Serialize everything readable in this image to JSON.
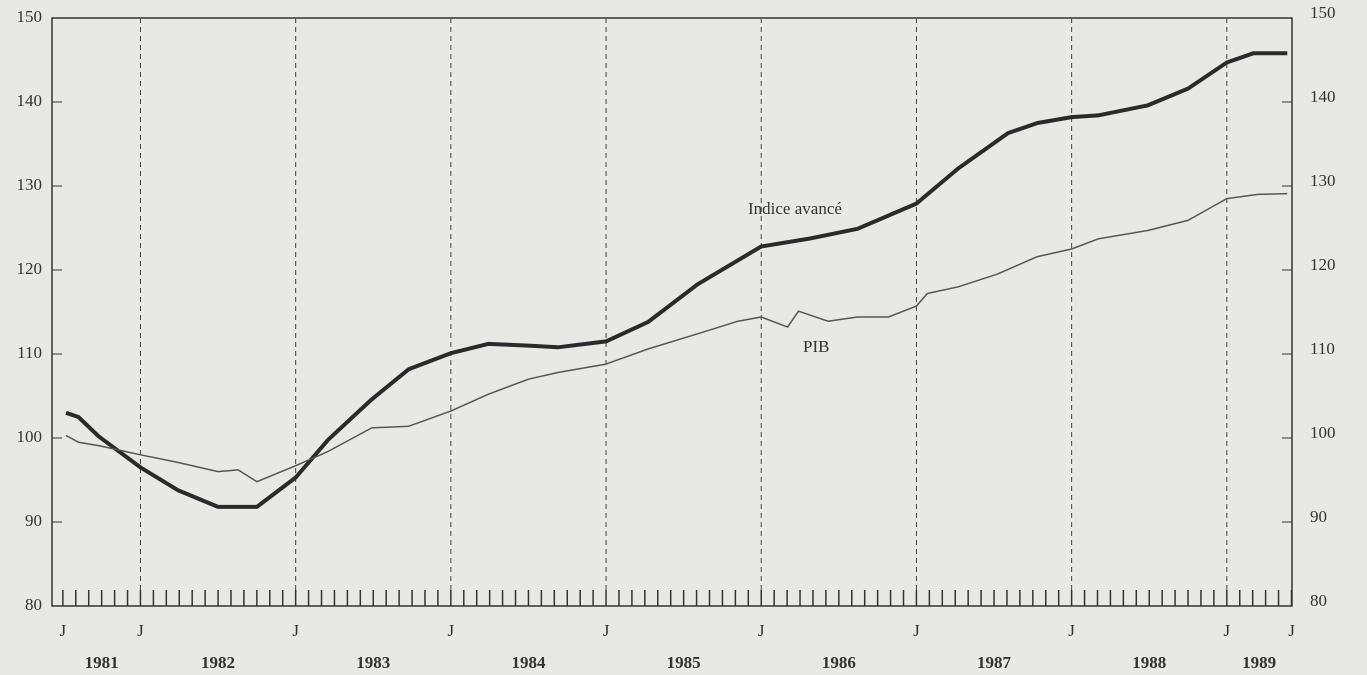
{
  "chart_data": {
    "type": "line",
    "series": [
      {
        "name": "Indice avancé",
        "color": "#2a2a2a",
        "width": 4,
        "x": [
          1981.52,
          1981.6,
          1981.73,
          1982.0,
          1982.24,
          1982.5,
          1982.75,
          1983.0,
          1983.21,
          1983.49,
          1983.73,
          1984.0,
          1984.24,
          1984.5,
          1984.69,
          1985.0,
          1985.27,
          1985.59,
          1986.0,
          1986.3,
          1986.62,
          1987.0,
          1987.27,
          1987.59,
          1987.78,
          1988.0,
          1988.17,
          1988.49,
          1988.75,
          1989.0,
          1989.17,
          1989.39
        ],
        "values": [
          103,
          102.5,
          100.2,
          96.5,
          93.8,
          91.8,
          91.8,
          95.3,
          99.8,
          104.6,
          108.2,
          110.1,
          111.2,
          111,
          110.8,
          111.5,
          113.8,
          118.3,
          122.8,
          123.7,
          124.9,
          127.9,
          132.1,
          136.3,
          137.5,
          138.2,
          138.4,
          139.6,
          141.6,
          144.7,
          145.8,
          145.8
        ]
      },
      {
        "name": "PIB",
        "color": "#555555",
        "width": 1.5,
        "x": [
          1981.52,
          1981.6,
          1981.73,
          1982.0,
          1982.24,
          1982.5,
          1982.63,
          1982.75,
          1983.0,
          1983.21,
          1983.49,
          1983.73,
          1984.0,
          1984.24,
          1984.5,
          1984.69,
          1985.0,
          1985.27,
          1985.59,
          1985.85,
          1986.0,
          1986.17,
          1986.24,
          1986.43,
          1986.62,
          1986.82,
          1987.0,
          1987.07,
          1987.27,
          1987.52,
          1987.78,
          1988.0,
          1988.17,
          1988.49,
          1988.75,
          1989.0,
          1989.2,
          1989.39
        ],
        "values": [
          100.3,
          99.5,
          99.1,
          98,
          97.1,
          96,
          96.2,
          94.8,
          96.7,
          98.4,
          101.2,
          101.4,
          103.2,
          105.2,
          107,
          107.8,
          108.8,
          110.6,
          112.4,
          113.9,
          114.4,
          113.2,
          115.1,
          113.9,
          114.4,
          114.4,
          115.7,
          117.2,
          118,
          119.5,
          121.6,
          122.5,
          123.7,
          124.7,
          125.9,
          128.5,
          129,
          129.1
        ]
      }
    ],
    "xlim": [
      1981.43,
      1989.42
    ],
    "xticks": [
      {
        "value": 1981.5,
        "label": "J"
      },
      {
        "value": 1982,
        "label": "J"
      },
      {
        "value": 1983,
        "label": "J"
      },
      {
        "value": 1984,
        "label": "J"
      },
      {
        "value": 1985,
        "label": "J"
      },
      {
        "value": 1986,
        "label": "J"
      },
      {
        "value": 1987,
        "label": "J"
      },
      {
        "value": 1988,
        "label": "J"
      },
      {
        "value": 1989,
        "label": "J"
      },
      {
        "value": 1989.417,
        "label": "J"
      }
    ],
    "years": [
      {
        "value": 1981,
        "label": "1981"
      },
      {
        "value": 1982,
        "label": "1982"
      },
      {
        "value": 1983,
        "label": "1983"
      },
      {
        "value": 1984,
        "label": "1984"
      },
      {
        "value": 1985,
        "label": "1985"
      },
      {
        "value": 1986,
        "label": "1986"
      },
      {
        "value": 1987,
        "label": "1987"
      },
      {
        "value": 1988,
        "label": "1988"
      },
      {
        "value": 1989,
        "label": "1989"
      }
    ],
    "minor_ticks_per_year": 12,
    "ylim": [
      80,
      150
    ],
    "yticks": [
      80,
      90,
      100,
      110,
      120,
      130,
      140,
      150
    ],
    "y2lim": [
      80,
      150
    ],
    "y2ticks": [
      80,
      90,
      100,
      110,
      120,
      130,
      140,
      150
    ]
  }
}
